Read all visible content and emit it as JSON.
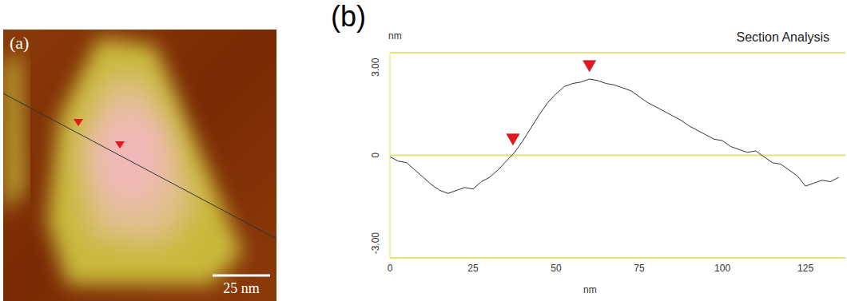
{
  "chart_data": [
    {
      "type": "image",
      "label": "(a)",
      "scale_bar": "25 nm"
    },
    {
      "type": "line",
      "label": "(b)",
      "title": "Section Analysis",
      "x_label": "nm",
      "y_label": "nm",
      "x": [
        0,
        2.5,
        5,
        7.5,
        10,
        12.5,
        15,
        17.5,
        20,
        22.5,
        25,
        27.5,
        30,
        32.5,
        35,
        37.5,
        40,
        42.5,
        45,
        47.5,
        50,
        52.5,
        55,
        57.5,
        60,
        62.5,
        65,
        67.5,
        70,
        72.5,
        75,
        77.5,
        80,
        82.5,
        85,
        87.5,
        90,
        92.5,
        95,
        97.5,
        100,
        102.5,
        105,
        107.5,
        110,
        112.5,
        115,
        117.5,
        120,
        122.5,
        125,
        127.5,
        130,
        132.5,
        135
      ],
      "series": [
        {
          "color": "#333333",
          "values": [
            -0.05,
            -0.2,
            -0.25,
            -0.5,
            -0.75,
            -1.0,
            -1.2,
            -1.3,
            -1.2,
            -1.1,
            -1.15,
            -0.9,
            -0.75,
            -0.5,
            -0.2,
            0.1,
            0.5,
            0.95,
            1.4,
            1.8,
            2.1,
            2.35,
            2.45,
            2.5,
            2.6,
            2.55,
            2.45,
            2.4,
            2.3,
            2.2,
            2.0,
            1.8,
            1.65,
            1.5,
            1.35,
            1.2,
            1.0,
            0.85,
            0.7,
            0.55,
            0.5,
            0.3,
            0.2,
            0.1,
            0.15,
            -0.05,
            -0.25,
            -0.3,
            -0.5,
            -0.7,
            -1.05,
            -0.95,
            -0.85,
            -0.9,
            -0.75
          ]
        },
        {
          "type": "scatter",
          "marker": "triangle",
          "color": "#e8141e",
          "x": [
            37,
            60
          ],
          "values": [
            0.35,
            2.85
          ]
        }
      ],
      "xlim": [
        0,
        137
      ],
      "xticks": [
        0,
        25,
        50,
        75,
        100,
        125
      ],
      "ylim": [
        -3.5,
        3.5
      ],
      "yticks": [
        {
          "value": 3,
          "label": "3.00"
        },
        0,
        {
          "value": -3,
          "label": "-3.00"
        }
      ],
      "grid": true
    }
  ]
}
